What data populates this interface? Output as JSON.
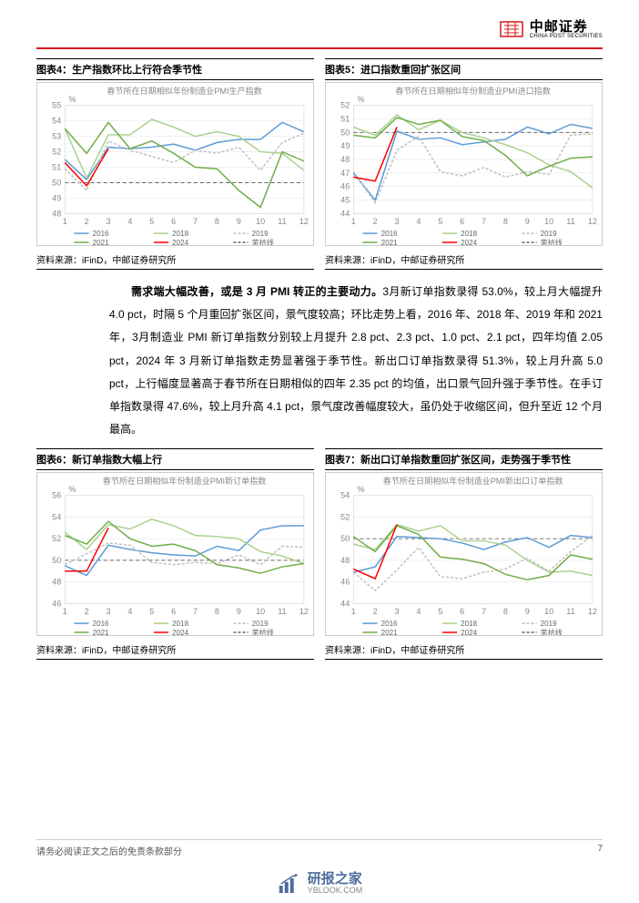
{
  "logo": {
    "cn": "中邮证券",
    "en": "CHINA POST SECURITIES"
  },
  "charts": [
    {
      "id": "chart4",
      "title": "图表4：生产指数环比上行符合季节性",
      "subtitle": "春节所在日期相似年份制造业PMI生产指数",
      "source": "资料来源：iFinD，中邮证券研究所",
      "type": "line",
      "x_categories": [
        "1",
        "2",
        "3",
        "4",
        "5",
        "6",
        "7",
        "8",
        "9",
        "10",
        "11",
        "12"
      ],
      "ylim": [
        48,
        55
      ],
      "ytick_step": 1,
      "background_color": "#ffffff",
      "grid_color": "#e0e0e0",
      "reference_line": {
        "value": 50,
        "style": "dash",
        "color": "#666666"
      },
      "series": [
        {
          "name": "2016",
          "color": "#5b9bd5",
          "values": [
            51.5,
            50.2,
            52.3,
            52.2,
            52.3,
            52.5,
            52.1,
            52.6,
            52.8,
            52.8,
            53.9,
            53.3
          ]
        },
        {
          "name": "2018",
          "color": "#a9d18e",
          "values": [
            53.5,
            50.3,
            53.1,
            53.1,
            54.1,
            53.6,
            53.0,
            53.3,
            53.0,
            52.0,
            51.9,
            50.8
          ]
        },
        {
          "name": "2019",
          "color": "#bfbfbf",
          "style": "dash",
          "values": [
            50.9,
            49.5,
            52.7,
            52.1,
            51.7,
            51.3,
            52.1,
            51.9,
            52.3,
            50.8,
            52.6,
            53.2
          ]
        },
        {
          "name": "2021",
          "color": "#70ad47",
          "values": [
            53.5,
            51.9,
            53.9,
            52.2,
            52.7,
            51.9,
            51.0,
            50.9,
            49.5,
            48.4,
            52.0,
            51.4
          ]
        },
        {
          "name": "2024",
          "color": "#ff0000",
          "values": [
            51.3,
            49.8,
            52.2
          ]
        },
        {
          "name": "荣枯线",
          "color": "#666666",
          "style": "dash",
          "is_ref": true
        }
      ]
    },
    {
      "id": "chart5",
      "title": "图表5：进口指数重回扩张区间",
      "subtitle": "春节所在日期相似年份制造业PMI进口指数",
      "source": "资料来源：iFinD，中邮证券研究所",
      "type": "line",
      "x_categories": [
        "1",
        "2",
        "3",
        "4",
        "5",
        "6",
        "7",
        "8",
        "9",
        "10",
        "11",
        "12"
      ],
      "ylim": [
        44,
        52
      ],
      "ytick_step": 1,
      "background_color": "#ffffff",
      "grid_color": "#e0e0e0",
      "reference_line": {
        "value": 50,
        "style": "dash",
        "color": "#666666"
      },
      "series": [
        {
          "name": "2016",
          "color": "#5b9bd5",
          "values": [
            47.0,
            45.0,
            50.1,
            49.5,
            49.6,
            49.1,
            49.3,
            49.5,
            50.4,
            49.9,
            50.6,
            50.3
          ]
        },
        {
          "name": "2018",
          "color": "#a9d18e",
          "values": [
            50.4,
            49.8,
            51.3,
            50.2,
            50.9,
            50.0,
            49.6,
            49.1,
            48.5,
            47.6,
            47.1,
            45.9
          ]
        },
        {
          "name": "2019",
          "color": "#bfbfbf",
          "style": "dash",
          "values": [
            47.1,
            44.8,
            48.7,
            49.7,
            47.1,
            46.8,
            47.4,
            46.7,
            47.1,
            46.9,
            49.8,
            49.9
          ]
        },
        {
          "name": "2021",
          "color": "#70ad47",
          "values": [
            49.8,
            49.6,
            51.1,
            50.6,
            50.9,
            49.7,
            49.4,
            48.3,
            46.8,
            47.5,
            48.1,
            48.2
          ]
        },
        {
          "name": "2024",
          "color": "#ff0000",
          "values": [
            46.7,
            46.4,
            50.4
          ]
        },
        {
          "name": "荣枯线",
          "color": "#666666",
          "style": "dash",
          "is_ref": true
        }
      ]
    },
    {
      "id": "chart6",
      "title": "图表6：新订单指数大幅上行",
      "subtitle": "春节所在日期相似年份制造业PMI新订单指数",
      "source": "资料来源：iFinD，中邮证券研究所",
      "type": "line",
      "x_categories": [
        "1",
        "2",
        "3",
        "4",
        "5",
        "6",
        "7",
        "8",
        "9",
        "10",
        "11",
        "12"
      ],
      "ylim": [
        46,
        56
      ],
      "ytick_step": 2,
      "background_color": "#ffffff",
      "grid_color": "#e0e0e0",
      "reference_line": {
        "value": 50,
        "style": "dash",
        "color": "#666666"
      },
      "series": [
        {
          "name": "2016",
          "color": "#5b9bd5",
          "values": [
            49.5,
            48.6,
            51.4,
            51.0,
            50.7,
            50.5,
            50.4,
            51.3,
            50.9,
            52.8,
            53.2,
            53.2
          ]
        },
        {
          "name": "2018",
          "color": "#a9d18e",
          "values": [
            52.6,
            51.0,
            53.3,
            52.9,
            53.8,
            53.2,
            52.3,
            52.2,
            52.0,
            50.8,
            50.4,
            49.7
          ]
        },
        {
          "name": "2019",
          "color": "#bfbfbf",
          "style": "dash",
          "values": [
            49.6,
            50.6,
            51.6,
            51.4,
            49.8,
            49.6,
            49.8,
            49.7,
            50.5,
            49.6,
            51.3,
            51.2
          ]
        },
        {
          "name": "2021",
          "color": "#70ad47",
          "values": [
            52.3,
            51.5,
            53.6,
            52.0,
            51.3,
            51.5,
            50.9,
            49.6,
            49.3,
            48.8,
            49.4,
            49.7
          ]
        },
        {
          "name": "2024",
          "color": "#ff0000",
          "values": [
            49.0,
            49.0,
            53.0
          ]
        },
        {
          "name": "荣枯线",
          "color": "#666666",
          "style": "dash",
          "is_ref": true
        }
      ]
    },
    {
      "id": "chart7",
      "title": "图表7：新出口订单指数重回扩张区间，走势强于季节性",
      "subtitle": "春节所在日期相似年份制造业PMI新出口订单指数",
      "source": "资料来源：iFinD，中邮证券研究所",
      "type": "line",
      "x_categories": [
        "1",
        "2",
        "3",
        "4",
        "5",
        "6",
        "7",
        "8",
        "9",
        "10",
        "11",
        "12"
      ],
      "ylim": [
        44,
        54
      ],
      "ytick_step": 2,
      "background_color": "#ffffff",
      "grid_color": "#e0e0e0",
      "reference_line": {
        "value": 50,
        "style": "dash",
        "color": "#666666"
      },
      "series": [
        {
          "name": "2016",
          "color": "#5b9bd5",
          "values": [
            46.9,
            47.4,
            50.2,
            50.1,
            50.0,
            49.6,
            49.0,
            49.7,
            50.1,
            49.2,
            50.3,
            50.1
          ]
        },
        {
          "name": "2018",
          "color": "#a9d18e",
          "values": [
            49.5,
            49.0,
            51.3,
            50.7,
            51.2,
            49.8,
            49.8,
            49.4,
            48.0,
            46.9,
            47.0,
            46.6
          ]
        },
        {
          "name": "2019",
          "color": "#bfbfbf",
          "style": "dash",
          "values": [
            46.9,
            45.2,
            47.1,
            49.2,
            46.5,
            46.3,
            46.9,
            47.2,
            48.2,
            47.0,
            48.8,
            50.3
          ]
        },
        {
          "name": "2021",
          "color": "#70ad47",
          "values": [
            50.2,
            48.8,
            51.2,
            50.4,
            48.3,
            48.1,
            47.7,
            46.7,
            46.2,
            46.6,
            48.5,
            48.1
          ]
        },
        {
          "name": "2024",
          "color": "#ff0000",
          "values": [
            47.2,
            46.3,
            51.3
          ]
        },
        {
          "name": "荣枯线",
          "color": "#666666",
          "style": "dash",
          "is_ref": true
        }
      ]
    }
  ],
  "body_paragraph": "<b>需求端大幅改善，或是 3 月 PMI 转正的主要动力。</b>3月新订单指数录得 53.0%，较上月大幅提升 4.0 pct，时隔 5 个月重回扩张区间，景气度较高；环比走势上看，2016 年、2018 年、2019 年和 2021 年，3月制造业 PMI 新订单指数分别较上月提升 2.8 pct、2.3 pct、1.0 pct、2.1 pct，四年均值 2.05 pct，2024 年 3 月新订单指数走势显著强于季节性。新出口订单指数录得 51.3%，较上月升高 5.0 pct，上行幅度显著高于春节所在日期相似的四年 2.35 pct 的均值，出口景气回升强于季节性。在手订单指数录得 47.6%，较上月升高 4.1 pct，景气度改善幅度较大，虽仍处于收缩区间，但升至近 12 个月最高。",
  "footer": {
    "left": "请务必阅读正文之后的免责条款部分",
    "page_number": "7"
  },
  "watermark": {
    "cn": "研报之家",
    "en": "YBLOOK.COM"
  }
}
